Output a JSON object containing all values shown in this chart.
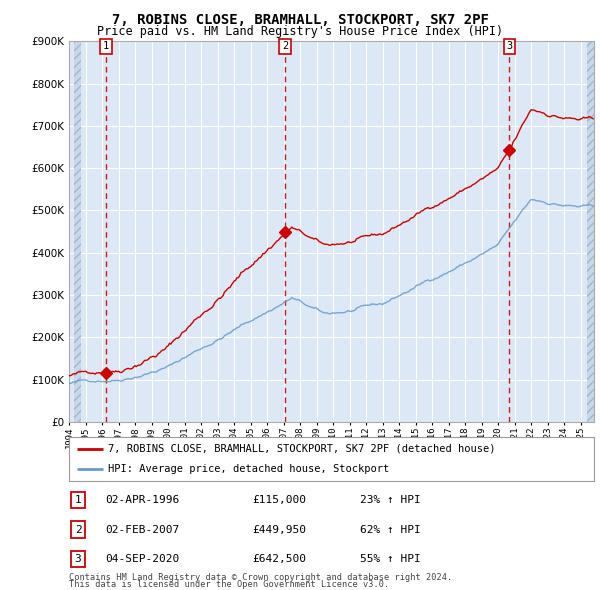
{
  "title": "7, ROBINS CLOSE, BRAMHALL, STOCKPORT, SK7 2PF",
  "subtitle": "Price paid vs. HM Land Registry's House Price Index (HPI)",
  "ylim": [
    0,
    900000
  ],
  "yticks": [
    0,
    100000,
    200000,
    300000,
    400000,
    500000,
    600000,
    700000,
    800000,
    900000
  ],
  "sale_prices": [
    115000,
    449950,
    642500
  ],
  "sale_labels": [
    "1",
    "2",
    "3"
  ],
  "sale_pcts": [
    "23%",
    "62%",
    "55%"
  ],
  "sale_date_labels": [
    "02-APR-1996",
    "02-FEB-2007",
    "04-SEP-2020"
  ],
  "sale_prices_fmt": [
    "£115,000",
    "£449,950",
    "£642,500"
  ],
  "property_color": "#cc0000",
  "hpi_line_color": "#6699cc",
  "legend_property": "7, ROBINS CLOSE, BRAMHALL, STOCKPORT, SK7 2PF (detached house)",
  "legend_hpi": "HPI: Average price, detached house, Stockport",
  "footnote1": "Contains HM Land Registry data © Crown copyright and database right 2024.",
  "footnote2": "This data is licensed under the Open Government Licence v3.0.",
  "background_plot": "#dce8f5",
  "grid_color": "#ffffff",
  "dashed_line_color": "#cc0000",
  "sale_year_floats": [
    1996.25,
    2007.08,
    2020.67
  ],
  "xmin": 1994.3,
  "xmax": 2025.8
}
